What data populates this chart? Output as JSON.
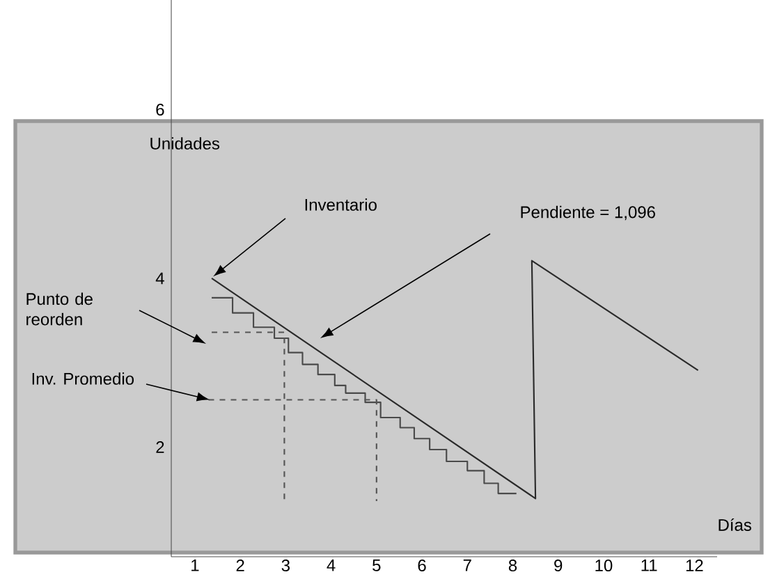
{
  "chart_data": {
    "type": "line",
    "xlabel": "Días",
    "ylabel": "Unidades",
    "xlim": [
      0.48,
      12.5
    ],
    "ylim": [
      0.7,
      7.3
    ],
    "xticks": [
      1,
      2,
      3,
      4,
      5,
      6,
      7,
      8,
      9,
      10,
      11,
      12
    ],
    "yticks": [
      2,
      4,
      6
    ],
    "grid": false,
    "marker": "none",
    "series": [
      {
        "color": "#2a2a2a",
        "x": [
          1.37,
          8.5,
          8.42,
          12.08
        ],
        "values": [
          4.0,
          1.39,
          4.21,
          2.91
        ]
      },
      {
        "type": "step",
        "color": "#4a4a4a",
        "x": [
          1.37,
          1.83,
          2.29,
          2.75,
          3.06,
          3.37,
          3.71,
          4.08,
          4.32,
          4.75,
          5.09,
          5.52,
          5.83,
          6.17,
          6.54,
          7.0,
          7.37,
          7.68,
          8.08
        ],
        "values": [
          3.77,
          3.59,
          3.42,
          3.29,
          3.12,
          2.98,
          2.86,
          2.73,
          2.64,
          2.53,
          2.35,
          2.23,
          2.1,
          1.97,
          1.83,
          1.72,
          1.57,
          1.45,
          1.45
        ]
      },
      {
        "color": "#555555",
        "line_style": "dashed",
        "x": [
          1.37,
          2.97,
          2.97
        ],
        "values": [
          3.36,
          3.36,
          1.36
        ]
      },
      {
        "color": "#555555",
        "line_style": "dashed",
        "x": [
          1.3,
          5.0,
          5.0
        ],
        "values": [
          2.56,
          2.56,
          1.36
        ]
      }
    ],
    "annotations": [
      {
        "text": "Inventario",
        "x": 1.4,
        "y": 4.02
      },
      "Pendiente = 1,096",
      "Punto de reorden",
      {
        "text": "Inv. Promedio",
        "x": 1.33,
        "y": 2.56
      }
    ]
  }
}
